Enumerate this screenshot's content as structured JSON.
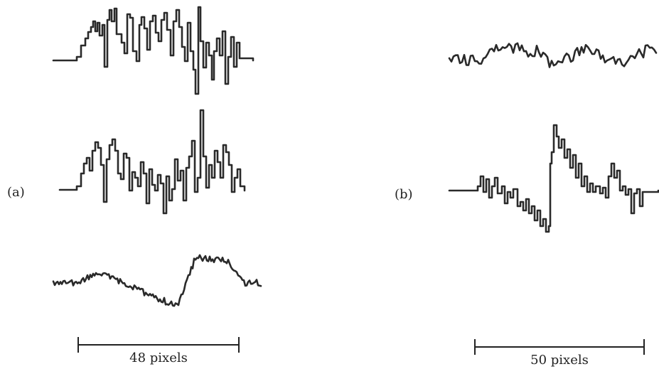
{
  "panels": [
    {
      "id": "a",
      "label": "(a)",
      "scale_label": "48 pixels",
      "scale_pixels": 48
    },
    {
      "id": "b",
      "label": "(b)",
      "scale_label": "50 pixels",
      "scale_pixels": 50
    }
  ]
}
